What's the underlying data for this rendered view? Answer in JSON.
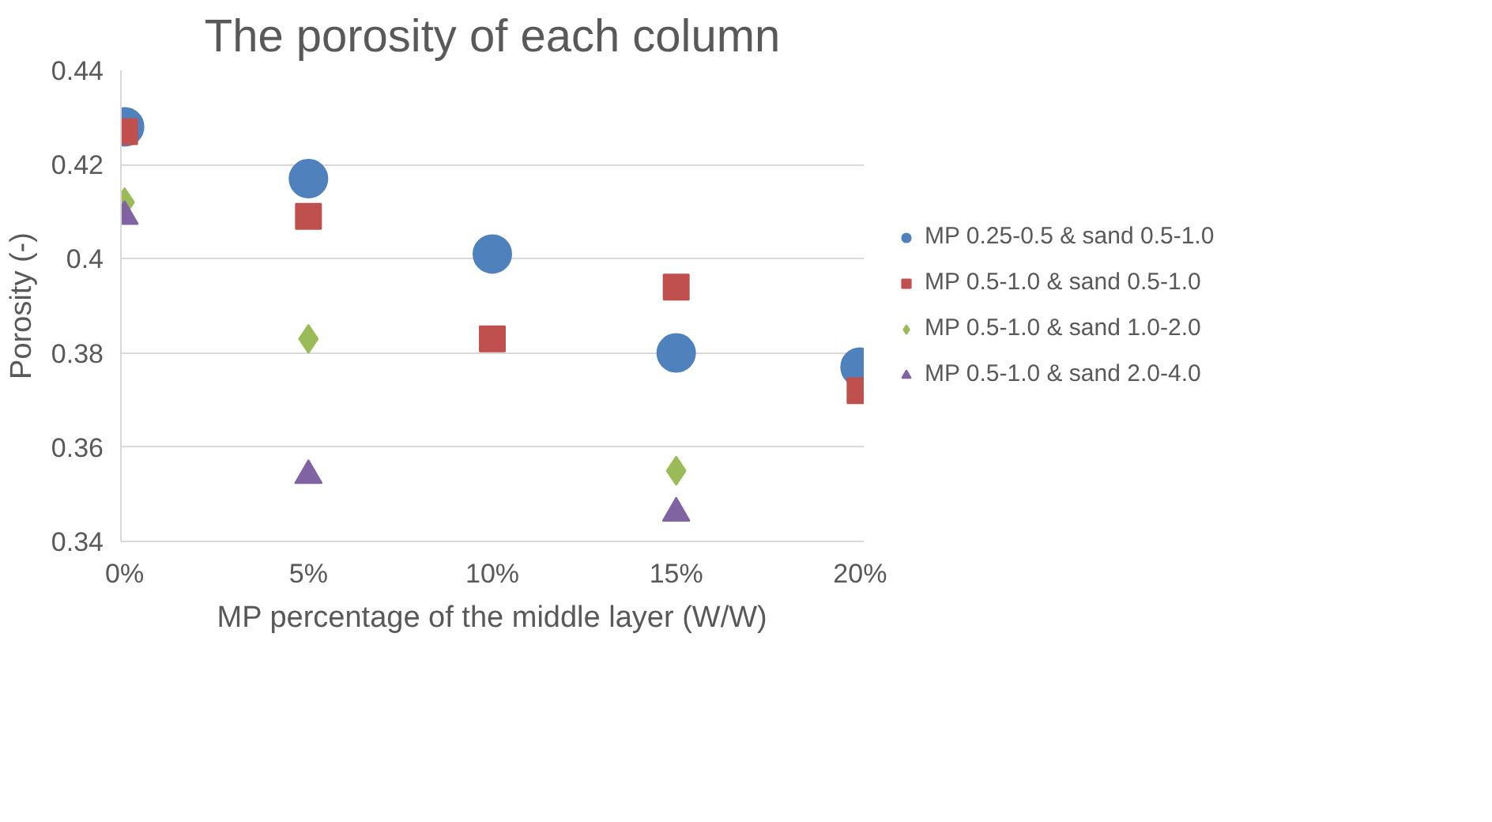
{
  "chart_data": {
    "type": "scatter",
    "title": "The porosity of each column",
    "xlabel": "MP percentage of the middle layer (W/W)",
    "ylabel": "Porosity (-)",
    "categories": [
      "0%",
      "5%",
      "10%",
      "15%",
      "20%"
    ],
    "ylim": [
      0.34,
      0.44
    ],
    "yticks": [
      {
        "value": 0.34,
        "label": "0.34"
      },
      {
        "value": 0.36,
        "label": "0.36"
      },
      {
        "value": 0.38,
        "label": "0.38"
      },
      {
        "value": 0.4,
        "label": "0.4"
      },
      {
        "value": 0.42,
        "label": "0.42"
      },
      {
        "value": 0.44,
        "label": "0.44"
      }
    ],
    "grid": "y",
    "legend": "right",
    "series": [
      {
        "name": "MP 0.25-0.5 & sand 0.5-1.0",
        "color": "#4f81bd",
        "marker": "circle",
        "values": [
          0.428,
          0.417,
          0.401,
          0.38,
          0.377
        ]
      },
      {
        "name": "MP 0.5-1.0 & sand 0.5-1.0",
        "color": "#c0504d",
        "marker": "square",
        "values": [
          0.427,
          0.409,
          0.383,
          0.394,
          0.372
        ]
      },
      {
        "name": "MP 0.5-1.0 & sand 1.0-2.0",
        "color": "#9bbb59",
        "marker": "diamond",
        "values": [
          0.412,
          0.383,
          null,
          0.355,
          null
        ]
      },
      {
        "name": "MP 0.5-1.0 & sand 2.0-4.0",
        "color": "#8064a2",
        "marker": "triangle",
        "values": [
          0.409,
          0.354,
          null,
          0.346,
          null
        ]
      }
    ]
  }
}
